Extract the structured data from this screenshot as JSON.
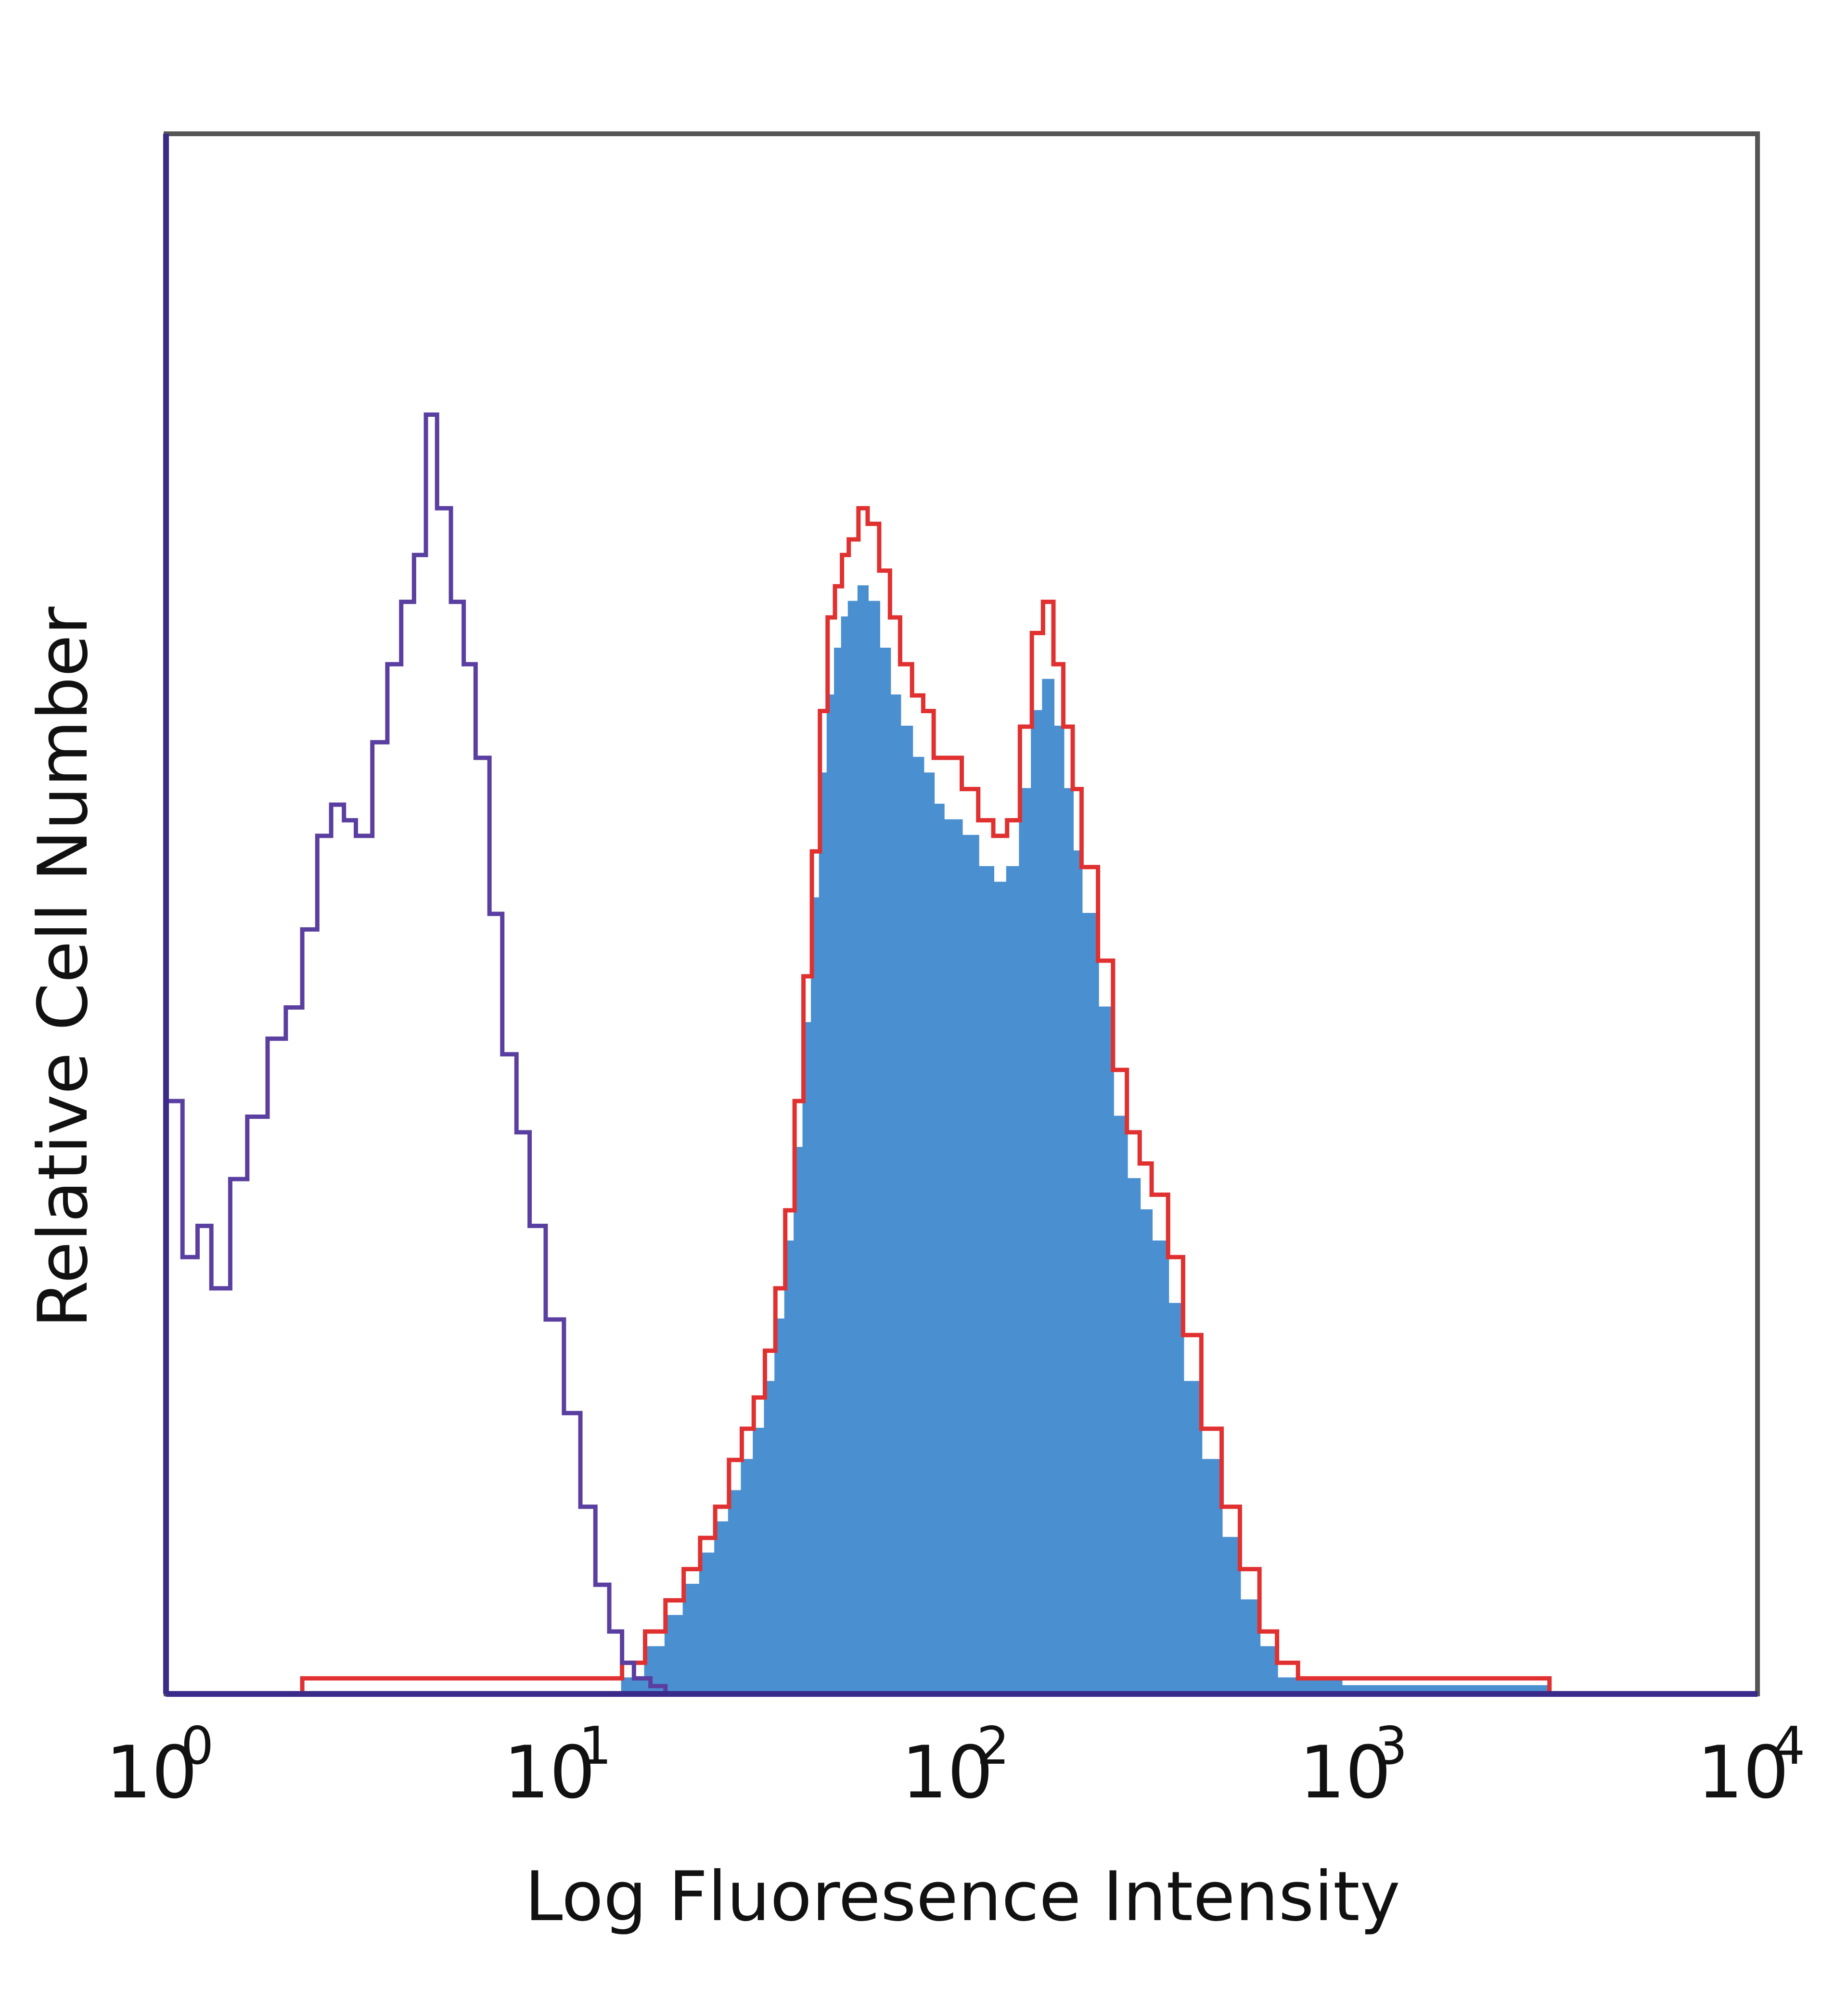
{
  "chart_data": {
    "type": "area",
    "title": "",
    "xlabel": "Log Fluoresence Intensity",
    "ylabel": "Relative Cell Number",
    "x_scale": "log",
    "xlim": [
      1,
      10000
    ],
    "ylim": [
      0,
      100
    ],
    "grid": false,
    "legend": "none",
    "x_ticks": [
      {
        "value": 1,
        "base": "10",
        "exp": "0"
      },
      {
        "value": 10,
        "base": "10",
        "exp": "1"
      },
      {
        "value": 100,
        "base": "10",
        "exp": "2"
      },
      {
        "value": 1000,
        "base": "10",
        "exp": "3"
      },
      {
        "value": 10000,
        "base": "10",
        "exp": "4"
      }
    ],
    "series": [
      {
        "style": "outline",
        "color": "#5a3fa0",
        "x": [
          1,
          1.1,
          1.2,
          1.3,
          1.45,
          1.6,
          1.8,
          2.0,
          2.2,
          2.4,
          2.6,
          2.8,
          3.0,
          3.3,
          3.6,
          3.9,
          4.2,
          4.5,
          4.8,
          5.2,
          5.6,
          6.0,
          6.5,
          7.0,
          7.6,
          8.2,
          9.0,
          10,
          11,
          12,
          13,
          14,
          15,
          16.5,
          18
        ],
        "y": [
          38,
          28,
          30,
          26,
          33,
          37,
          42,
          44,
          49,
          55,
          57,
          56,
          55,
          61,
          66,
          70,
          73,
          82,
          76,
          70,
          66,
          60,
          50,
          41,
          36,
          30,
          24,
          18,
          12,
          7,
          4,
          2,
          1,
          0.5,
          0
        ]
      },
      {
        "style": "outline",
        "color": "#e03030",
        "x": [
          2.2,
          3.2,
          4.5,
          6.2,
          9.0,
          12,
          14,
          16,
          18,
          20,
          22,
          24,
          26,
          28,
          30,
          32,
          34,
          36,
          38,
          40,
          42,
          44,
          46,
          48,
          50,
          52,
          55,
          58,
          62,
          66,
          70,
          75,
          80,
          85,
          90,
          100,
          110,
          120,
          130,
          140,
          150,
          160,
          170,
          180,
          190,
          200,
          220,
          240,
          260,
          280,
          300,
          330,
          360,
          400,
          450,
          500,
          560,
          620,
          700,
          800,
          900,
          1000,
          1200,
          1400,
          1700,
          2000,
          2500,
          3000
        ],
        "y": [
          1,
          1,
          1,
          1,
          1,
          1,
          2,
          4,
          6,
          8,
          10,
          12,
          15,
          17,
          19,
          22,
          26,
          31,
          38,
          46,
          54,
          63,
          69,
          71,
          73,
          74,
          76,
          75,
          72,
          69,
          66,
          64,
          63,
          60,
          60,
          58,
          56,
          55,
          56,
          62,
          68,
          70,
          66,
          62,
          58,
          53,
          47,
          40,
          36,
          34,
          32,
          28,
          23,
          17,
          12,
          8,
          4,
          2,
          1,
          1,
          1,
          1,
          1,
          1,
          1,
          1,
          1,
          0
        ]
      },
      {
        "style": "filled",
        "color": "#4a8fd0",
        "x": [
          2.2,
          3.2,
          4.5,
          6.2,
          9.0,
          12,
          14,
          16,
          18,
          20,
          22,
          24,
          26,
          28,
          30,
          32,
          34,
          36,
          38,
          40,
          42,
          44,
          46,
          48,
          50,
          52,
          55,
          58,
          62,
          66,
          70,
          75,
          80,
          85,
          90,
          100,
          110,
          120,
          130,
          140,
          150,
          160,
          170,
          180,
          190,
          200,
          220,
          240,
          260,
          280,
          300,
          330,
          360,
          400,
          450,
          500,
          560,
          620,
          700,
          800,
          900,
          1000,
          1200,
          1400,
          1700,
          2000,
          2500,
          3000
        ],
        "y": [
          0,
          0,
          0,
          0,
          0,
          0,
          1,
          3,
          5,
          7,
          9,
          11,
          13,
          15,
          17,
          20,
          24,
          29,
          35,
          43,
          51,
          59,
          64,
          67,
          69,
          70,
          71,
          70,
          67,
          64,
          62,
          60,
          59,
          57,
          56,
          55,
          53,
          52,
          53,
          58,
          63,
          65,
          62,
          58,
          54,
          50,
          44,
          37,
          33,
          31,
          29,
          25,
          20,
          15,
          10,
          6,
          3,
          1,
          1,
          1,
          0.5,
          0.5,
          0.5,
          0.5,
          0.5,
          0.5,
          0.5,
          0
        ]
      }
    ]
  }
}
